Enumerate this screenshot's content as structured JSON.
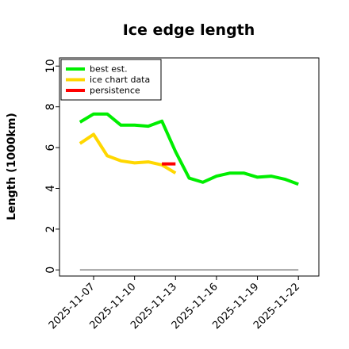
{
  "chart_data": {
    "type": "line",
    "title": "Ice edge length",
    "ylabel": "Length (1000km)",
    "xlabel": "",
    "ylim": [
      -0.3,
      10.4
    ],
    "xlim": [
      "2025-11-04T12:00",
      "2025-11-23T12:00"
    ],
    "yticks": [
      "0",
      "2",
      "4",
      "6",
      "8",
      "10"
    ],
    "xticks": [
      "2025-11-07",
      "2025-11-10",
      "2025-11-13",
      "2025-11-16",
      "2025-11-19",
      "2025-11-22"
    ],
    "grid": false,
    "legend_position": "top-left",
    "series": [
      {
        "name": "best est.",
        "color": "#00ee00",
        "x": [
          "2025-11-06",
          "2025-11-07",
          "2025-11-08",
          "2025-11-09",
          "2025-11-10",
          "2025-11-11",
          "2025-11-12",
          "2025-11-13",
          "2025-11-14",
          "2025-11-15",
          "2025-11-16",
          "2025-11-17",
          "2025-11-18",
          "2025-11-19",
          "2025-11-20",
          "2025-11-21",
          "2025-11-22"
        ],
        "y": [
          7.25,
          7.65,
          7.65,
          7.1,
          7.1,
          7.05,
          7.3,
          5.8,
          4.5,
          4.3,
          4.6,
          4.75,
          4.75,
          4.55,
          4.6,
          4.45,
          4.2
        ]
      },
      {
        "name": "ice chart data",
        "color": "#ffd700",
        "x": [
          "2025-11-06",
          "2025-11-07",
          "2025-11-08",
          "2025-11-09",
          "2025-11-10",
          "2025-11-11",
          "2025-11-12",
          "2025-11-13"
        ],
        "y": [
          6.2,
          6.65,
          5.6,
          5.35,
          5.25,
          5.3,
          5.15,
          4.75
        ]
      },
      {
        "name": "persistence",
        "color": "#ff0000",
        "x": [
          "2025-11-12",
          "2025-11-13"
        ],
        "y": [
          5.2,
          5.2
        ]
      },
      {
        "name": "",
        "color": "#808080",
        "x": [
          "2025-11-06",
          "2025-11-22"
        ],
        "y": [
          0,
          0
        ]
      }
    ]
  }
}
